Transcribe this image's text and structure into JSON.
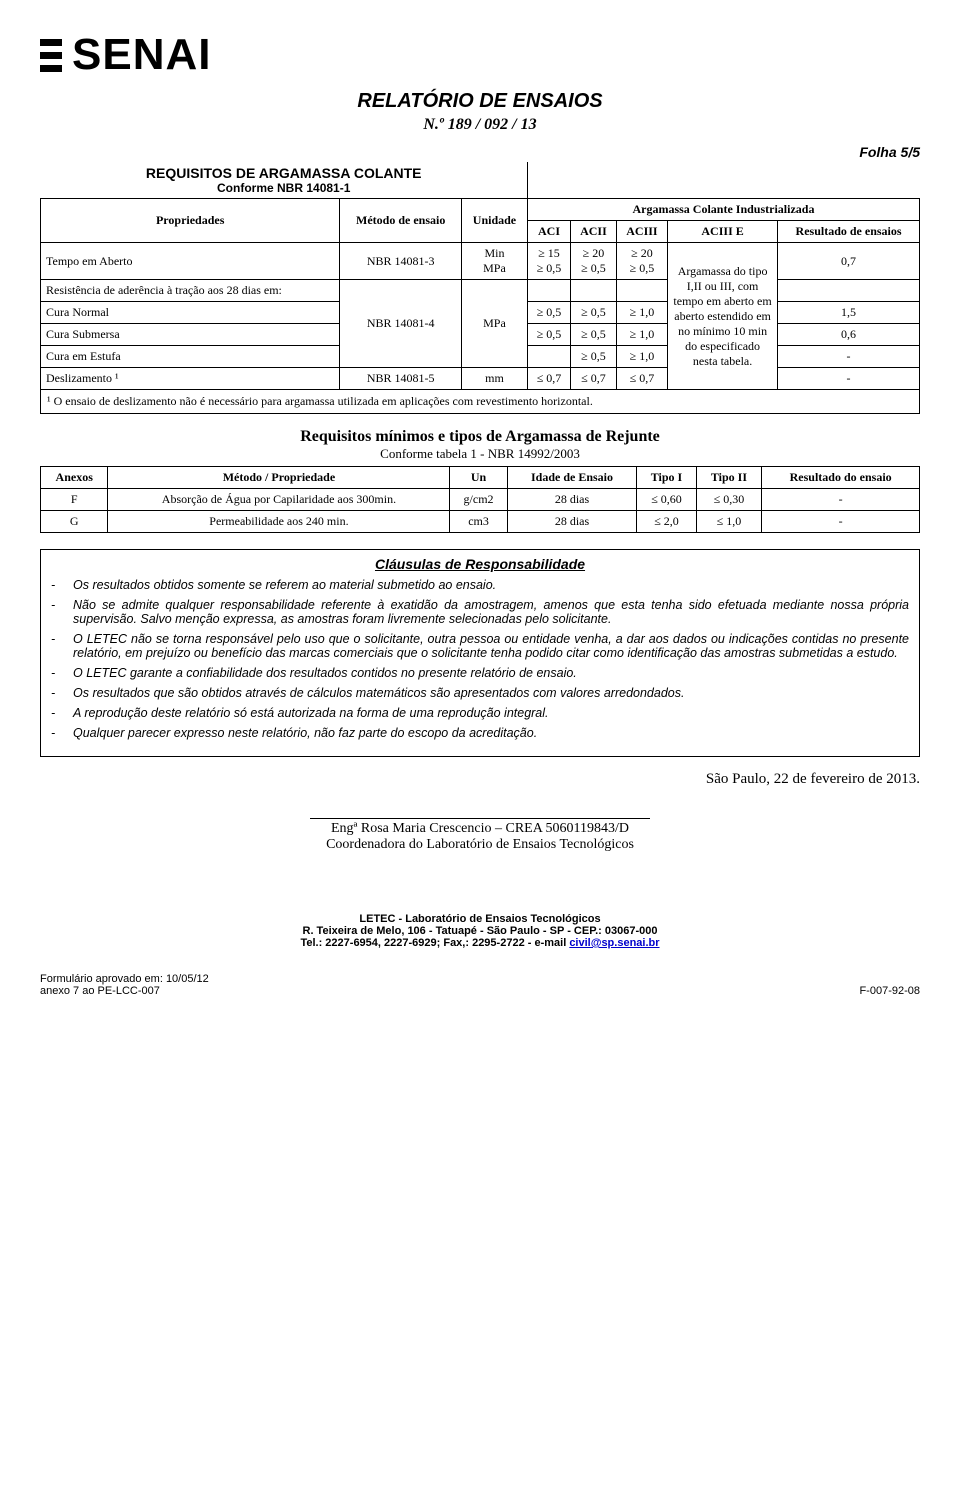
{
  "logo_text": "SENAI",
  "report": {
    "title": "RELATÓRIO DE ENSAIOS",
    "number": "N.º  189 / 092 / 13",
    "folha": "Folha 5/5"
  },
  "table1": {
    "section_title": "REQUISITOS DE ARGAMASSA COLANTE",
    "section_sub": "Conforme NBR 14081-1",
    "headers": {
      "propriedades": "Propriedades",
      "metodo": "Método de ensaio",
      "unidade": "Unidade",
      "argamassa": "Argamassa Colante Industrializada",
      "aci": "ACI",
      "acii": "ACII",
      "aciii": "ACIII",
      "aciiie": "ACIII E",
      "resultado": "Resultado de ensaios"
    },
    "rows": [
      {
        "prop": "Tempo em Aberto",
        "metodo": "NBR 14081-3",
        "unidade_l1": "Min",
        "unidade_l2": "MPa",
        "aci_l1": "≥ 15",
        "aci_l2": "≥ 0,5",
        "acii_l1": "≥ 20",
        "acii_l2": "≥ 0,5",
        "aciii_l1": "≥ 20",
        "aciii_l2": "≥ 0,5",
        "res": "0,7"
      },
      {
        "prop": "Resistência de aderência à tração aos 28 dias em:",
        "res": ""
      },
      {
        "prop": "Cura Normal",
        "metodo": "NBR 14081-4",
        "unidade": "MPa",
        "aci": "≥ 0,5",
        "acii": "≥ 0,5",
        "aciii": "≥ 1,0",
        "res": "1,5"
      },
      {
        "prop": "Cura Submersa",
        "aci": "≥ 0,5",
        "acii": "≥ 0,5",
        "aciii": "≥ 1,0",
        "res": "0,6"
      },
      {
        "prop": "Cura em Estufa",
        "aci": "",
        "acii": "≥ 0,5",
        "aciii": "≥ 1,0",
        "res": "-"
      },
      {
        "prop": "Deslizamento ¹",
        "metodo": "NBR 14081-5",
        "unidade": "mm",
        "aci": "≤ 0,7",
        "acii": "≤ 0,7",
        "aciii": "≤ 0,7",
        "res": "-"
      }
    ],
    "aciiie_text": "Argamassa do tipo I,II ou III, com tempo em aberto em aberto estendido em no mínimo 10 min do especificado nesta tabela.",
    "footnote": "¹ O ensaio de deslizamento não é necessário para argamassa utilizada em aplicações com revestimento horizontal."
  },
  "table2": {
    "title": "Requisitos mínimos e tipos de Argamassa de Rejunte",
    "sub": "Conforme tabela 1 - NBR 14992/2003",
    "headers": {
      "anexos": "Anexos",
      "metodo": "Método / Propriedade",
      "un": "Un",
      "idade": "Idade  de Ensaio",
      "tipo1": "Tipo I",
      "tipo2": "Tipo II",
      "resultado": "Resultado do ensaio"
    },
    "rows": [
      {
        "anexo": "F",
        "metodo": "Absorção de Água por Capilaridade aos 300min.",
        "un": "g/cm2",
        "idade": "28 dias",
        "t1": "≤ 0,60",
        "t2": "≤ 0,30",
        "res": "-"
      },
      {
        "anexo": "G",
        "metodo": "Permeabilidade aos 240 min.",
        "un": "cm3",
        "idade": "28 dias",
        "t1": "≤ 2,0",
        "t2": "≤ 1,0",
        "res": "-"
      }
    ]
  },
  "clausulas": {
    "title": "Cláusulas de Responsabilidade",
    "items": [
      "Os resultados obtidos somente se referem ao material submetido ao ensaio.",
      "Não se admite qualquer responsabilidade referente à exatidão da amostragem, amenos que esta tenha sido efetuada mediante nossa própria supervisão. Salvo menção expressa, as amostras foram livremente selecionadas pelo solicitante.",
      "O LETEC não se torna responsável pelo uso que o solicitante, outra pessoa ou entidade venha, a dar aos dados ou indicações contidas no presente relatório, em prejuízo ou benefício das marcas comerciais que o solicitante tenha podido citar como identificação das amostras submetidas a estudo.",
      "O LETEC garante a confiabilidade dos resultados contidos no presente relatório de ensaio.",
      "Os resultados que são obtidos através de cálculos matemáticos são apresentados com valores arredondados.",
      "A reprodução deste relatório só está autorizada na forma de uma reprodução integral.",
      "Qualquer  parecer expresso neste relatório, não faz parte do escopo da acreditação."
    ]
  },
  "signature": {
    "city_date": "São Paulo, 22 de fevereiro de 2013.",
    "name": "Engª Rosa Maria Crescencio – CREA 5060119843/D",
    "role": "Coordenadora do Laboratório de Ensaios Tecnológicos"
  },
  "footer": {
    "l1": "LETEC - Laboratório de Ensaios Tecnológicos",
    "l2": "R. Teixeira de Melo, 106 - Tatuapé - São Paulo - SP - CEP.: 03067-000",
    "l3_pre": "Tel.: 2227-6954, 2227-6929; Fax,: 2295-2722 - e-mail ",
    "l3_link": "civil@sp.senai.br"
  },
  "bottom": {
    "left_l1": "Formulário aprovado em: 10/05/12",
    "left_l2": "anexo 7 ao PE-LCC-007",
    "right": "F-007-92-08"
  }
}
